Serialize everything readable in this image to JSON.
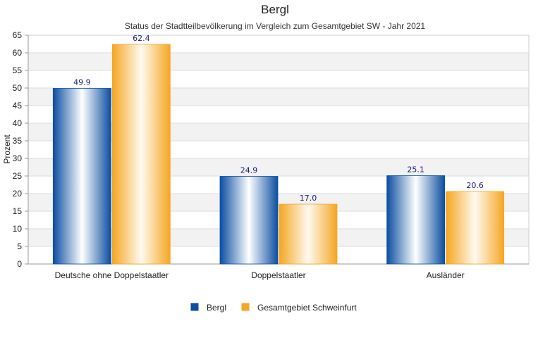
{
  "chart_data": {
    "type": "bar",
    "title": "Bergl",
    "subtitle": "Status der Stadtteilbevölkerung im Vergleich zum Gesamtgebiet SW - Jahr 2021",
    "ylabel": "Prozent",
    "xlabel": "",
    "categories": [
      "Deutsche ohne Doppelstaatler",
      "Doppelstaatler",
      "Ausländer"
    ],
    "series": [
      {
        "name": "Bergl",
        "values": [
          49.9,
          24.9,
          25.1
        ],
        "color": "#0b4ea2",
        "light": "#ffffff"
      },
      {
        "name": "Gesamtgebiet Schweinfurt",
        "values": [
          62.4,
          17.0,
          20.6
        ],
        "color": "#f5a623",
        "light": "#fffaf0"
      }
    ],
    "ylim": [
      0,
      65
    ],
    "yticks": [
      0,
      5,
      10,
      15,
      20,
      25,
      30,
      35,
      40,
      45,
      50,
      55,
      60,
      65
    ],
    "grid": true,
    "grid_band_color": "#f2f2f2",
    "data_label_color": "#1a1a80",
    "legend_position": "bottom-center"
  }
}
